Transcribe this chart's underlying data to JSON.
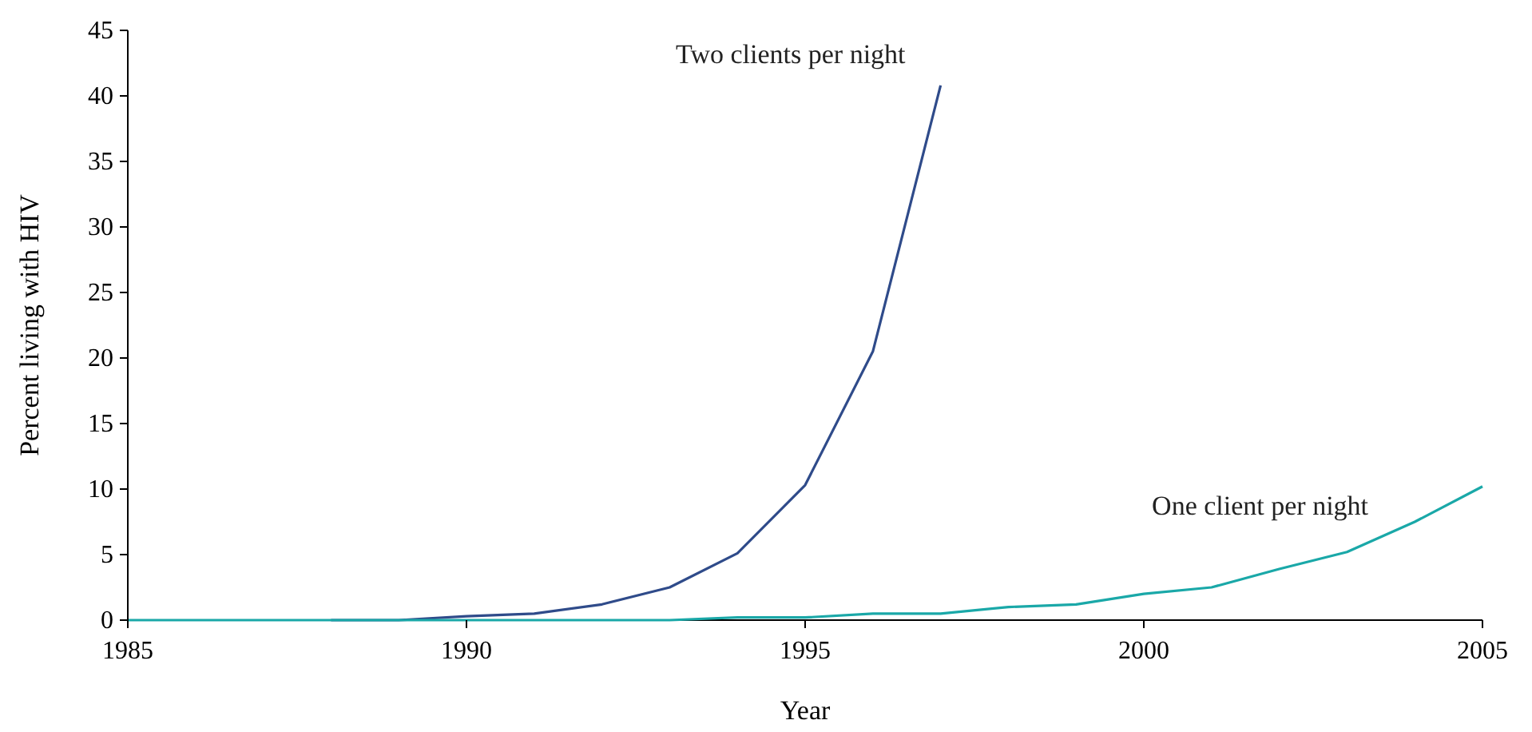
{
  "chart_data": {
    "type": "line",
    "xlabel": "Year",
    "ylabel": "Percent living with HIV",
    "x": [
      1985,
      1986,
      1987,
      1988,
      1989,
      1990,
      1991,
      1992,
      1993,
      1994,
      1995,
      1996,
      1997,
      1998,
      1999,
      2000,
      2001,
      2002,
      2003,
      2004,
      2005
    ],
    "series": [
      {
        "name": "Two clients per night",
        "color": "#2f4b8a",
        "x": [
          1988,
          1989,
          1990,
          1991,
          1992,
          1993,
          1994,
          1995,
          1996,
          1997
        ],
        "values": [
          0,
          0,
          0.3,
          0.5,
          1.2,
          2.5,
          5.1,
          10.3,
          20.5,
          40.8
        ]
      },
      {
        "name": "One client per night",
        "color": "#1aa8a8",
        "values": [
          0,
          0,
          0,
          0,
          0,
          0,
          0,
          0,
          0,
          0.2,
          0.2,
          0.5,
          0.5,
          1.0,
          1.2,
          2.0,
          2.5,
          3.9,
          5.2,
          7.5,
          10.2
        ]
      }
    ],
    "xlim": [
      1985,
      2005
    ],
    "xticks": [
      1985,
      1990,
      1995,
      2000,
      2005
    ],
    "ylim": [
      0,
      45
    ],
    "yticks": [
      0,
      5,
      10,
      15,
      20,
      25,
      30,
      35,
      40,
      45
    ],
    "grid": false,
    "legend": false,
    "marker": "none",
    "line_style": "solid"
  }
}
